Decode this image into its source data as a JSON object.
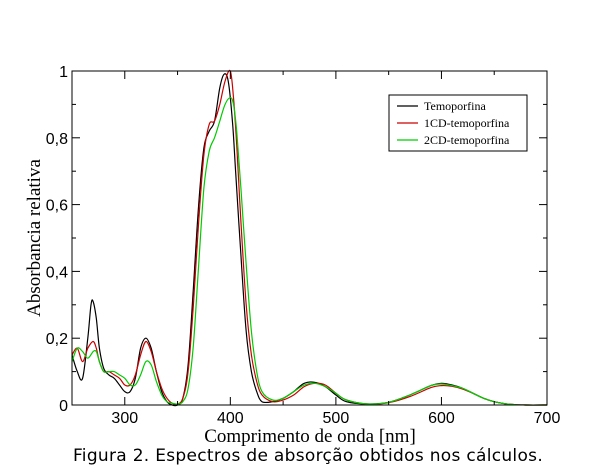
{
  "caption": "Figura 2. Espectros de absorção obtidos nos cálculos.",
  "chart_data": {
    "type": "line",
    "title": "",
    "xlabel": "Comprimento de onda [nm]",
    "ylabel": "Absorbancia relativa",
    "xlim": [
      250,
      700
    ],
    "ylim": [
      0,
      1
    ],
    "x_ticks": [
      300,
      400,
      500,
      600,
      700
    ],
    "x_tick_labels": [
      "300",
      "400",
      "500",
      "600",
      "700"
    ],
    "y_ticks": [
      0,
      0.2,
      0.4,
      0.6,
      0.8,
      1
    ],
    "y_tick_labels": [
      "0",
      "0,2",
      "0,4",
      "0,6",
      "0,8",
      "1"
    ],
    "grid": false,
    "legend_position": "top-right",
    "series": [
      {
        "name": "Temoporfina",
        "color": "#000000",
        "points": [
          [
            250,
            0.15
          ],
          [
            255,
            0.1
          ],
          [
            260,
            0.08
          ],
          [
            265,
            0.2
          ],
          [
            268,
            0.3
          ],
          [
            270,
            0.31
          ],
          [
            273,
            0.26
          ],
          [
            276,
            0.17
          ],
          [
            280,
            0.11
          ],
          [
            285,
            0.09
          ],
          [
            290,
            0.08
          ],
          [
            295,
            0.06
          ],
          [
            300,
            0.04
          ],
          [
            305,
            0.04
          ],
          [
            310,
            0.08
          ],
          [
            315,
            0.17
          ],
          [
            320,
            0.2
          ],
          [
            325,
            0.17
          ],
          [
            330,
            0.1
          ],
          [
            335,
            0.04
          ],
          [
            340,
            0.01
          ],
          [
            345,
            0.0
          ],
          [
            350,
            0.0
          ],
          [
            355,
            0.02
          ],
          [
            360,
            0.12
          ],
          [
            365,
            0.35
          ],
          [
            370,
            0.6
          ],
          [
            375,
            0.77
          ],
          [
            380,
            0.82
          ],
          [
            385,
            0.85
          ],
          [
            390,
            0.95
          ],
          [
            394,
            0.99
          ],
          [
            398,
            0.97
          ],
          [
            402,
            0.85
          ],
          [
            405,
            0.7
          ],
          [
            410,
            0.45
          ],
          [
            415,
            0.22
          ],
          [
            420,
            0.1
          ],
          [
            425,
            0.04
          ],
          [
            430,
            0.01
          ],
          [
            440,
            0.01
          ],
          [
            450,
            0.02
          ],
          [
            460,
            0.04
          ],
          [
            470,
            0.065
          ],
          [
            480,
            0.068
          ],
          [
            490,
            0.055
          ],
          [
            500,
            0.03
          ],
          [
            510,
            0.01
          ],
          [
            530,
            0.003
          ],
          [
            550,
            0.008
          ],
          [
            570,
            0.03
          ],
          [
            590,
            0.058
          ],
          [
            600,
            0.065
          ],
          [
            610,
            0.06
          ],
          [
            620,
            0.05
          ],
          [
            630,
            0.035
          ],
          [
            640,
            0.02
          ],
          [
            650,
            0.01
          ],
          [
            660,
            0.004
          ],
          [
            670,
            0.001
          ],
          [
            680,
            0.0
          ],
          [
            700,
            0.0
          ]
        ]
      },
      {
        "name": "1CD-temoporfina",
        "color": "#cc0000",
        "points": [
          [
            250,
            0.15
          ],
          [
            255,
            0.17
          ],
          [
            260,
            0.13
          ],
          [
            265,
            0.17
          ],
          [
            270,
            0.19
          ],
          [
            273,
            0.17
          ],
          [
            276,
            0.13
          ],
          [
            280,
            0.1
          ],
          [
            285,
            0.1
          ],
          [
            290,
            0.09
          ],
          [
            295,
            0.08
          ],
          [
            300,
            0.06
          ],
          [
            305,
            0.06
          ],
          [
            310,
            0.09
          ],
          [
            315,
            0.15
          ],
          [
            320,
            0.19
          ],
          [
            325,
            0.16
          ],
          [
            330,
            0.1
          ],
          [
            335,
            0.05
          ],
          [
            340,
            0.02
          ],
          [
            345,
            0.005
          ],
          [
            350,
            0.003
          ],
          [
            355,
            0.02
          ],
          [
            360,
            0.1
          ],
          [
            365,
            0.3
          ],
          [
            370,
            0.55
          ],
          [
            375,
            0.75
          ],
          [
            380,
            0.84
          ],
          [
            385,
            0.85
          ],
          [
            390,
            0.9
          ],
          [
            395,
            0.97
          ],
          [
            400,
            1.0
          ],
          [
            403,
            0.92
          ],
          [
            406,
            0.78
          ],
          [
            410,
            0.55
          ],
          [
            415,
            0.3
          ],
          [
            420,
            0.15
          ],
          [
            425,
            0.07
          ],
          [
            430,
            0.03
          ],
          [
            440,
            0.01
          ],
          [
            450,
            0.015
          ],
          [
            460,
            0.03
          ],
          [
            470,
            0.055
          ],
          [
            480,
            0.065
          ],
          [
            490,
            0.06
          ],
          [
            500,
            0.035
          ],
          [
            510,
            0.015
          ],
          [
            530,
            0.003
          ],
          [
            550,
            0.007
          ],
          [
            570,
            0.025
          ],
          [
            590,
            0.052
          ],
          [
            600,
            0.058
          ],
          [
            610,
            0.056
          ],
          [
            620,
            0.048
          ],
          [
            630,
            0.035
          ],
          [
            640,
            0.02
          ],
          [
            650,
            0.01
          ],
          [
            660,
            0.004
          ],
          [
            670,
            0.001
          ],
          [
            680,
            0.0
          ],
          [
            700,
            0.0
          ]
        ]
      },
      {
        "name": "2CD-temoporfina",
        "color": "#00cc00",
        "points": [
          [
            250,
            0.13
          ],
          [
            255,
            0.17
          ],
          [
            260,
            0.16
          ],
          [
            265,
            0.14
          ],
          [
            270,
            0.16
          ],
          [
            273,
            0.16
          ],
          [
            276,
            0.13
          ],
          [
            280,
            0.1
          ],
          [
            285,
            0.1
          ],
          [
            290,
            0.1
          ],
          [
            295,
            0.09
          ],
          [
            300,
            0.08
          ],
          [
            305,
            0.06
          ],
          [
            310,
            0.06
          ],
          [
            315,
            0.09
          ],
          [
            320,
            0.13
          ],
          [
            325,
            0.12
          ],
          [
            330,
            0.07
          ],
          [
            335,
            0.03
          ],
          [
            340,
            0.01
          ],
          [
            345,
            0.005
          ],
          [
            350,
            0.003
          ],
          [
            355,
            0.01
          ],
          [
            360,
            0.05
          ],
          [
            365,
            0.18
          ],
          [
            370,
            0.42
          ],
          [
            375,
            0.65
          ],
          [
            380,
            0.76
          ],
          [
            385,
            0.8
          ],
          [
            390,
            0.85
          ],
          [
            395,
            0.9
          ],
          [
            400,
            0.92
          ],
          [
            403,
            0.9
          ],
          [
            406,
            0.82
          ],
          [
            410,
            0.65
          ],
          [
            415,
            0.42
          ],
          [
            420,
            0.22
          ],
          [
            425,
            0.1
          ],
          [
            430,
            0.04
          ],
          [
            440,
            0.015
          ],
          [
            450,
            0.02
          ],
          [
            460,
            0.04
          ],
          [
            470,
            0.06
          ],
          [
            480,
            0.065
          ],
          [
            490,
            0.055
          ],
          [
            500,
            0.035
          ],
          [
            510,
            0.015
          ],
          [
            530,
            0.003
          ],
          [
            550,
            0.008
          ],
          [
            570,
            0.03
          ],
          [
            590,
            0.058
          ],
          [
            600,
            0.063
          ],
          [
            610,
            0.058
          ],
          [
            620,
            0.05
          ],
          [
            630,
            0.035
          ],
          [
            640,
            0.02
          ],
          [
            650,
            0.01
          ],
          [
            660,
            0.004
          ],
          [
            670,
            0.001
          ],
          [
            680,
            0.0
          ],
          [
            700,
            0.0
          ]
        ]
      }
    ]
  }
}
